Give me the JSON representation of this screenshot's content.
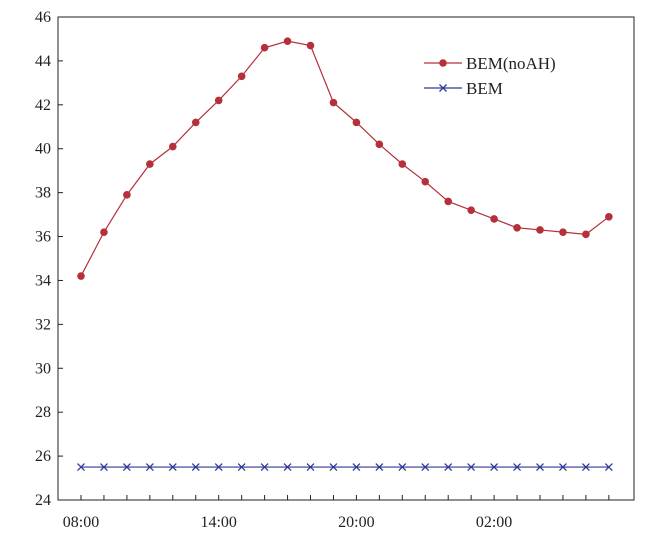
{
  "chart_data": {
    "type": "line",
    "title": "",
    "xlabel": "",
    "ylabel": "",
    "ylim": [
      24,
      46
    ],
    "yticks": [
      24,
      26,
      28,
      30,
      32,
      34,
      36,
      38,
      40,
      42,
      44,
      46
    ],
    "ytick_labels": [
      "24",
      "26",
      "28",
      "30",
      "32",
      "34",
      "36",
      "38",
      "40",
      "42",
      "44",
      "46"
    ],
    "x": [
      "08:00",
      "09:00",
      "10:00",
      "11:00",
      "12:00",
      "13:00",
      "14:00",
      "15:00",
      "16:00",
      "17:00",
      "18:00",
      "19:00",
      "20:00",
      "21:00",
      "22:00",
      "23:00",
      "00:00",
      "01:00",
      "02:00",
      "03:00",
      "04:00",
      "05:00",
      "06:00",
      "07:00"
    ],
    "xtick_labels": [
      "08:00",
      "14:00",
      "20:00",
      "02:00"
    ],
    "legend_position": "top-right",
    "series": [
      {
        "name": "BEM(noAH)",
        "color": "#b5303a",
        "marker": "circle",
        "values": [
          34.2,
          36.2,
          37.9,
          39.3,
          40.1,
          41.2,
          42.2,
          43.3,
          44.6,
          44.9,
          44.7,
          42.1,
          41.2,
          40.2,
          39.3,
          38.5,
          37.6,
          37.2,
          36.8,
          36.4,
          36.3,
          36.2,
          36.1,
          36.9
        ]
      },
      {
        "name": "BEM",
        "color": "#2f3a9a",
        "marker": "x",
        "values": [
          25.5,
          25.5,
          25.5,
          25.5,
          25.5,
          25.5,
          25.5,
          25.5,
          25.5,
          25.5,
          25.5,
          25.5,
          25.5,
          25.5,
          25.5,
          25.5,
          25.5,
          25.5,
          25.5,
          25.5,
          25.5,
          25.5,
          25.5,
          25.5
        ]
      }
    ]
  }
}
